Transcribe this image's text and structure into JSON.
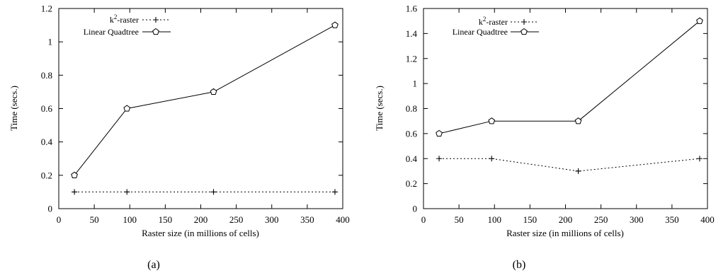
{
  "chart_data": [
    {
      "type": "line",
      "caption": "(a)",
      "xlabel": "Raster size (in millions of cells)",
      "ylabel": "Time (secs.)",
      "xlim": [
        0,
        400
      ],
      "ylim": [
        0,
        1.2
      ],
      "x_ticks": [
        "0",
        "50",
        "100",
        "150",
        "200",
        "250",
        "300",
        "350",
        "400"
      ],
      "y_ticks": [
        "0",
        "0.2",
        "0.4",
        "0.6",
        "0.8",
        "1",
        "1.2"
      ],
      "grid": false,
      "legend_position": "top-left",
      "legend_items": [
        {
          "label_base": "k",
          "label_sup": "2",
          "label_rest": "-raster"
        },
        {
          "label_base": "Linear Quadtree",
          "label_sup": "",
          "label_rest": ""
        }
      ],
      "series": [
        {
          "name": "k2-raster",
          "style": "dotted",
          "marker": "plus",
          "x": [
            22,
            96,
            218,
            389
          ],
          "y": [
            0.1,
            0.1,
            0.1,
            0.1
          ]
        },
        {
          "name": "Linear Quadtree",
          "style": "solid",
          "marker": "pentagon",
          "x": [
            22,
            96,
            218,
            389
          ],
          "y": [
            0.2,
            0.6,
            0.7,
            1.1
          ]
        }
      ]
    },
    {
      "type": "line",
      "caption": "(b)",
      "xlabel": "Raster size (in millions of cells)",
      "ylabel": "Time (secs.)",
      "xlim": [
        0,
        400
      ],
      "ylim": [
        0,
        1.6
      ],
      "x_ticks": [
        "0",
        "50",
        "100",
        "150",
        "200",
        "250",
        "300",
        "350",
        "400"
      ],
      "y_ticks": [
        "0",
        "0.2",
        "0.4",
        "0.6",
        "0.8",
        "1",
        "1.2",
        "1.4",
        "1.6"
      ],
      "grid": false,
      "legend_position": "top-left",
      "legend_items": [
        {
          "label_base": "k",
          "label_sup": "2",
          "label_rest": "-raster"
        },
        {
          "label_base": "Linear Quadtree",
          "label_sup": "",
          "label_rest": ""
        }
      ],
      "series": [
        {
          "name": "k2-raster",
          "style": "dotted",
          "marker": "plus",
          "x": [
            22,
            96,
            218,
            389
          ],
          "y": [
            0.4,
            0.4,
            0.3,
            0.4
          ]
        },
        {
          "name": "Linear Quadtree",
          "style": "solid",
          "marker": "pentagon",
          "x": [
            22,
            96,
            218,
            389
          ],
          "y": [
            0.6,
            0.7,
            0.7,
            1.5
          ]
        }
      ]
    }
  ]
}
